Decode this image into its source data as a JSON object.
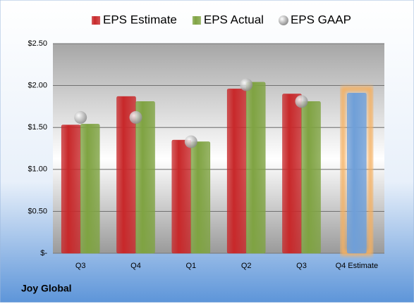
{
  "chart_data": {
    "type": "bar",
    "footer": "Joy Global",
    "categories": [
      "Q3",
      "Q4",
      "Q1",
      "Q2",
      "Q3",
      "Q4 Estimate"
    ],
    "series": [
      {
        "name": "EPS Estimate",
        "color": "#c8282a",
        "values": [
          1.53,
          1.87,
          1.35,
          1.96,
          1.9,
          1.91
        ],
        "point_colors": [
          "#c8282a",
          "#c8282a",
          "#c8282a",
          "#c8282a",
          "#c8282a",
          "#6f9fd8"
        ],
        "glow_color": "#f5b060"
      },
      {
        "name": "EPS Actual",
        "color": "#7fa342",
        "values": [
          1.54,
          1.81,
          1.33,
          2.04,
          1.81,
          null
        ]
      },
      {
        "name": "EPS GAAP",
        "color": "#a8a8a8",
        "marker": "circle",
        "values": [
          1.62,
          1.62,
          1.33,
          2.01,
          1.81,
          null
        ]
      }
    ],
    "ylim": [
      0,
      2.5
    ],
    "yticks": [
      {
        "value": 0,
        "label": "$-"
      },
      {
        "value": 0.5,
        "label": "$0.50"
      },
      {
        "value": 1,
        "label": "$1.00"
      },
      {
        "value": 1.5,
        "label": "$1.50"
      },
      {
        "value": 2,
        "label": "$2.00"
      },
      {
        "value": 2.5,
        "label": "$2.50"
      }
    ],
    "grid": true
  }
}
